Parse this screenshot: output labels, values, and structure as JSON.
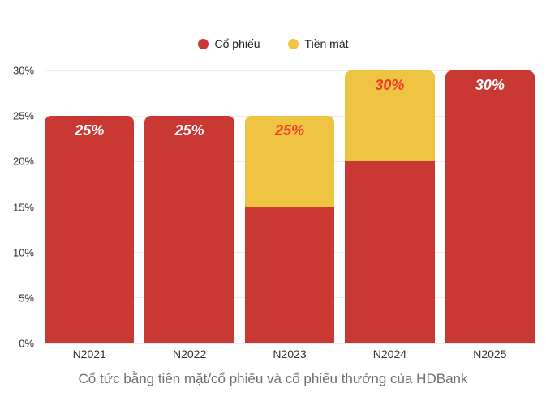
{
  "chart_data": {
    "type": "bar",
    "stacked": true,
    "categories": [
      "N2021",
      "N2022",
      "N2023",
      "N2024",
      "N2025"
    ],
    "series": [
      {
        "name": "Cổ phiếu",
        "color": "#CA3834",
        "values": [
          25,
          25,
          15,
          20,
          30
        ]
      },
      {
        "name": "Tiền mặt",
        "color": "#F0C443",
        "values": [
          0,
          0,
          10,
          10,
          0
        ]
      }
    ],
    "bar_labels": [
      {
        "text": "25%",
        "color": "#FFFFFF"
      },
      {
        "text": "25%",
        "color": "#FFFFFF"
      },
      {
        "text": "25%",
        "color": "#F23A28"
      },
      {
        "text": "30%",
        "color": "#F23A28"
      },
      {
        "text": "30%",
        "color": "#FFFFFF"
      }
    ],
    "y_ticks": [
      "0%",
      "5%",
      "10%",
      "15%",
      "20%",
      "25%",
      "30%"
    ],
    "ylim": [
      0,
      30
    ],
    "grid": true,
    "legend_position": "top",
    "title": "Cổ tức bằng tiền mặt/cổ phiếu và cổ phiếu thưởng của HDBank"
  }
}
